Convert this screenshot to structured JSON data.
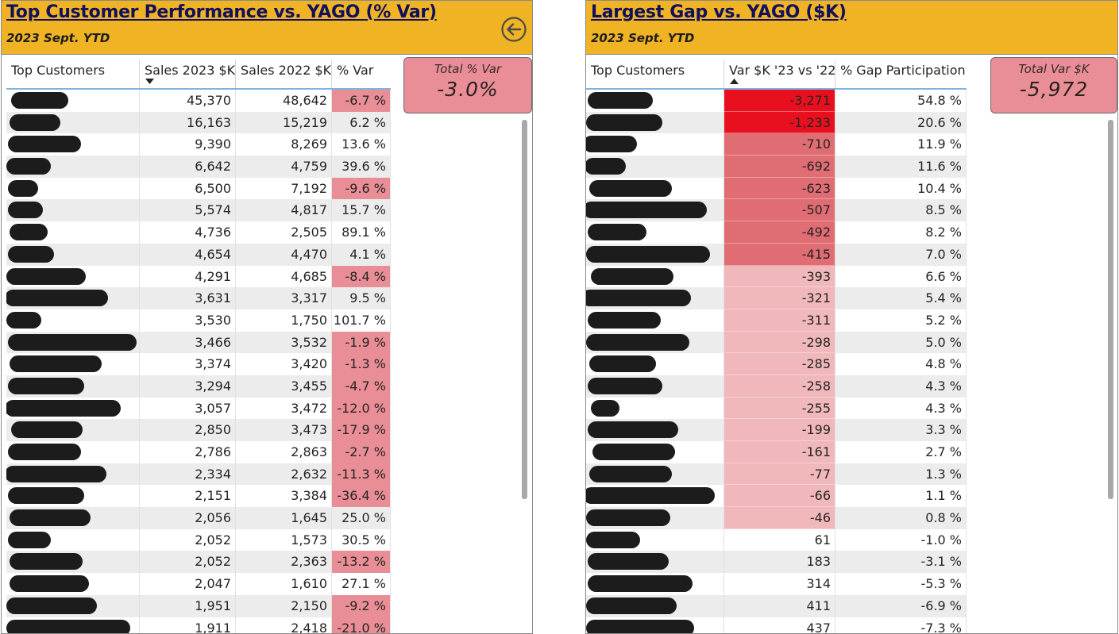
{
  "left": {
    "title": "Top Customer Performance vs. YAGO (% Var)",
    "subtitle": "2023 Sept. YTD",
    "back_icon": "arrow-left-circle-icon",
    "kpi": {
      "label": "Total % Var",
      "value": "-3.0%"
    },
    "columns": [
      "Top Customers",
      "Sales 2023 $K",
      "Sales 2022 $K",
      "% Var"
    ],
    "sort": {
      "column": "Sales 2023 $K",
      "direction": "descending"
    },
    "rows": [
      {
        "s23": "45,370",
        "s22": "48,642",
        "var": "-6.7 %",
        "neg": true
      },
      {
        "s23": "16,163",
        "s22": "15,219",
        "var": "6.2 %",
        "neg": false
      },
      {
        "s23": "9,390",
        "s22": "8,269",
        "var": "13.6 %",
        "neg": false
      },
      {
        "s23": "6,642",
        "s22": "4,759",
        "var": "39.6 %",
        "neg": false
      },
      {
        "s23": "6,500",
        "s22": "7,192",
        "var": "-9.6 %",
        "neg": true
      },
      {
        "s23": "5,574",
        "s22": "4,817",
        "var": "15.7 %",
        "neg": false
      },
      {
        "s23": "4,736",
        "s22": "2,505",
        "var": "89.1 %",
        "neg": false
      },
      {
        "s23": "4,654",
        "s22": "4,470",
        "var": "4.1 %",
        "neg": false
      },
      {
        "s23": "4,291",
        "s22": "4,685",
        "var": "-8.4 %",
        "neg": true
      },
      {
        "s23": "3,631",
        "s22": "3,317",
        "var": "9.5 %",
        "neg": false
      },
      {
        "s23": "3,530",
        "s22": "1,750",
        "var": "101.7 %",
        "neg": false
      },
      {
        "s23": "3,466",
        "s22": "3,532",
        "var": "-1.9 %",
        "neg": true
      },
      {
        "s23": "3,374",
        "s22": "3,420",
        "var": "-1.3 %",
        "neg": true
      },
      {
        "s23": "3,294",
        "s22": "3,455",
        "var": "-4.7 %",
        "neg": true
      },
      {
        "s23": "3,057",
        "s22": "3,472",
        "var": "-12.0 %",
        "neg": true
      },
      {
        "s23": "2,850",
        "s22": "3,473",
        "var": "-17.9 %",
        "neg": true
      },
      {
        "s23": "2,786",
        "s22": "2,863",
        "var": "-2.7 %",
        "neg": true
      },
      {
        "s23": "2,334",
        "s22": "2,632",
        "var": "-11.3 %",
        "neg": true
      },
      {
        "s23": "2,151",
        "s22": "3,384",
        "var": "-36.4 %",
        "neg": true
      },
      {
        "s23": "2,056",
        "s22": "1,645",
        "var": "25.0 %",
        "neg": false
      },
      {
        "s23": "2,052",
        "s22": "1,573",
        "var": "30.5 %",
        "neg": false
      },
      {
        "s23": "2,052",
        "s22": "2,363",
        "var": "-13.2 %",
        "neg": true
      },
      {
        "s23": "2,047",
        "s22": "1,610",
        "var": "27.1 %",
        "neg": false
      },
      {
        "s23": "1,951",
        "s22": "2,150",
        "var": "-9.2 %",
        "neg": true
      },
      {
        "s23": "1,911",
        "s22": "2,418",
        "var": "-21.0 %",
        "neg": true
      }
    ]
  },
  "right": {
    "title": "Largest Gap vs. YAGO ($K)",
    "subtitle": "2023 Sept. YTD",
    "kpi": {
      "label": "Total Var $K",
      "value": "-5,972"
    },
    "columns": [
      "Top Customers",
      "Var $K '23 vs '22",
      "% Gap Participation"
    ],
    "sort": {
      "column": "Var $K '23 vs '22",
      "direction": "ascending"
    },
    "rows": [
      {
        "var": "-3,271",
        "gap": "54.8 %",
        "level": 3
      },
      {
        "var": "-1,233",
        "gap": "20.6 %",
        "level": 3
      },
      {
        "var": "-710",
        "gap": "11.9 %",
        "level": 2
      },
      {
        "var": "-692",
        "gap": "11.6 %",
        "level": 2
      },
      {
        "var": "-623",
        "gap": "10.4 %",
        "level": 2
      },
      {
        "var": "-507",
        "gap": "8.5 %",
        "level": 2
      },
      {
        "var": "-492",
        "gap": "8.2 %",
        "level": 2
      },
      {
        "var": "-415",
        "gap": "7.0 %",
        "level": 2
      },
      {
        "var": "-393",
        "gap": "6.6 %",
        "level": 1
      },
      {
        "var": "-321",
        "gap": "5.4 %",
        "level": 1
      },
      {
        "var": "-311",
        "gap": "5.2 %",
        "level": 1
      },
      {
        "var": "-298",
        "gap": "5.0 %",
        "level": 1
      },
      {
        "var": "-285",
        "gap": "4.8 %",
        "level": 1
      },
      {
        "var": "-258",
        "gap": "4.3 %",
        "level": 1
      },
      {
        "var": "-255",
        "gap": "4.3 %",
        "level": 1
      },
      {
        "var": "-199",
        "gap": "3.3 %",
        "level": 1
      },
      {
        "var": "-161",
        "gap": "2.7 %",
        "level": 1
      },
      {
        "var": "-77",
        "gap": "1.3 %",
        "level": 1
      },
      {
        "var": "-66",
        "gap": "1.1 %",
        "level": 1
      },
      {
        "var": "-46",
        "gap": "0.8 %",
        "level": 1
      },
      {
        "var": "61",
        "gap": "-1.0 %",
        "level": 0
      },
      {
        "var": "183",
        "gap": "-3.1 %",
        "level": 0
      },
      {
        "var": "314",
        "gap": "-5.3 %",
        "level": 0
      },
      {
        "var": "411",
        "gap": "-6.9 %",
        "level": 0
      },
      {
        "var": "437",
        "gap": "-7.3 %",
        "level": 0
      }
    ]
  },
  "colors": {
    "header_bg": "#f0b323",
    "title_text": "#10105f",
    "neg_var_fill": "#e98e96",
    "gap_level_3": "#e8101f",
    "gap_level_2": "#e06c74",
    "gap_level_1": "#f0b8bb",
    "kpi_fill": "#e98e96",
    "row_alt": "#ececec",
    "header_rule": "#7fb3e0",
    "redaction": "#1c1c1c"
  }
}
